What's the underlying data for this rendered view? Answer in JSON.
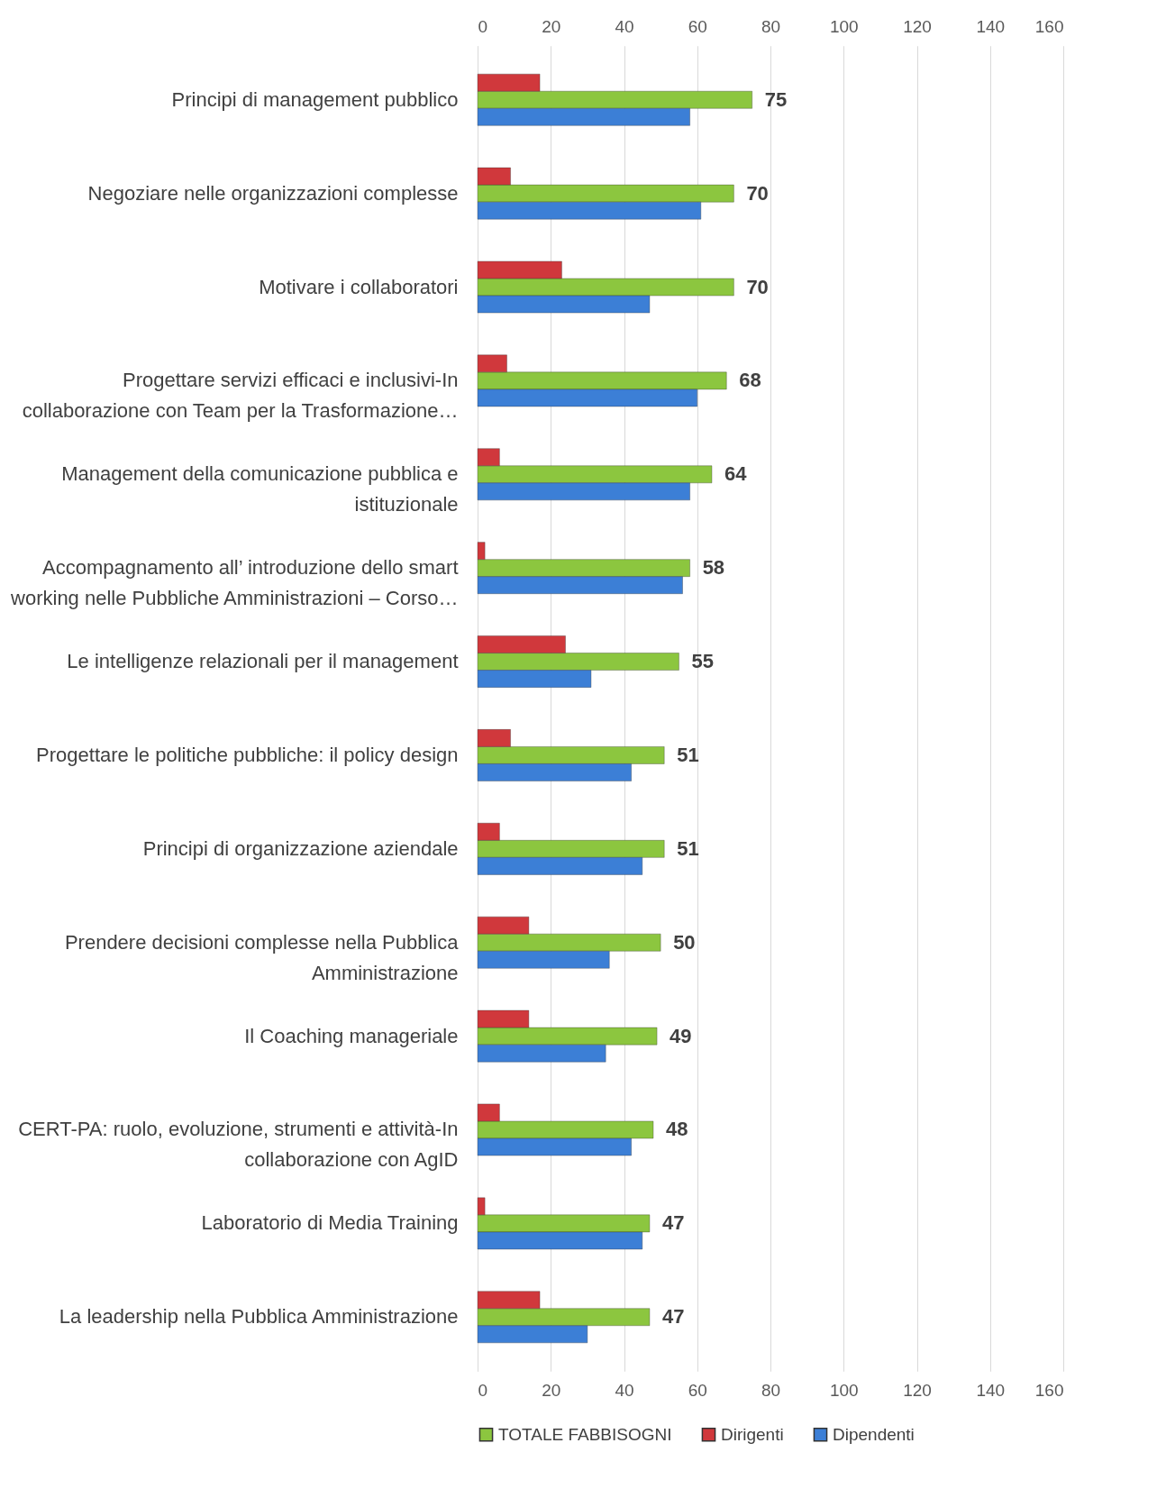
{
  "chart_data": {
    "type": "bar",
    "orientation": "horizontal",
    "categories": [
      "Principi di management pubblico",
      "Negoziare nelle organizzazioni complesse",
      "Motivare i collaboratori",
      "Progettare servizi efficaci e inclusivi-In collaborazione con Team per la Trasformazione…",
      "Management della comunicazione pubblica e istituzionale",
      "Accompagnamento all’ introduzione dello smart working nelle Pubbliche Amministrazioni – Corso…",
      "Le intelligenze relazionali per il management",
      "Progettare le politiche pubbliche: il policy design",
      "Principi di organizzazione aziendale",
      "Prendere decisioni complesse nella Pubblica Amministrazione",
      "Il Coaching manageriale",
      "CERT-PA: ruolo, evoluzione, strumenti e attività-In collaborazione con AgID",
      "Laboratorio di Media Training",
      "La leadership nella Pubblica Amministrazione"
    ],
    "series": [
      {
        "name": "TOTALE FABBISOGNI",
        "color": "#8cc63f",
        "values": [
          75,
          70,
          70,
          68,
          64,
          58,
          55,
          51,
          51,
          50,
          49,
          48,
          47,
          47
        ],
        "value_labels": [
          "75",
          "70",
          "70",
          "68",
          "64",
          "58",
          "55",
          "51",
          "51",
          "50",
          "49",
          "48",
          "47",
          "47"
        ]
      },
      {
        "name": "Dirigenti",
        "color": "#d0383c",
        "values": [
          17,
          9,
          23,
          8,
          6,
          2,
          24,
          9,
          6,
          14,
          14,
          6,
          2,
          17
        ]
      },
      {
        "name": "Dipendenti",
        "color": "#3c7fd6",
        "values": [
          58,
          61,
          47,
          60,
          58,
          56,
          31,
          42,
          45,
          36,
          35,
          42,
          45,
          30
        ]
      }
    ],
    "xlim": [
      0,
      160
    ],
    "xticks": [
      0,
      20,
      40,
      60,
      80,
      100,
      120,
      140,
      160
    ],
    "x2lim": [
      0,
      160
    ],
    "x2ticks": [
      0,
      20,
      40,
      60,
      80,
      100,
      120,
      140,
      160
    ],
    "grid": "x",
    "legend": "bottom"
  }
}
